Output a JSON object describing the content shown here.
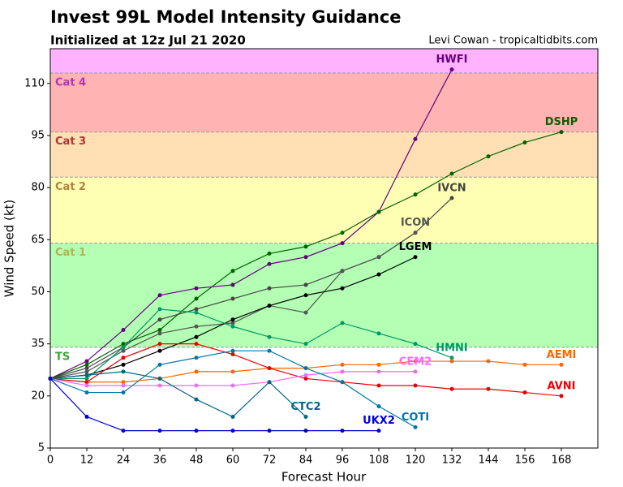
{
  "chart_data": {
    "type": "line",
    "title": "Invest 99L Model Intensity Guidance",
    "subtitle": "Initialized at 12z Jul 21 2020",
    "credit": "Levi Cowan - tropicaltidbits.com",
    "x_label": "Forecast Hour",
    "y_label": "Wind Speed (kt)",
    "xlim": [
      0,
      180
    ],
    "ylim": [
      5,
      120
    ],
    "xticks": [
      0,
      12,
      24,
      36,
      48,
      60,
      72,
      84,
      96,
      108,
      120,
      132,
      144,
      156,
      168
    ],
    "yticks": [
      5,
      20,
      35,
      50,
      65,
      80,
      95,
      110
    ],
    "bands": [
      {
        "name": "TS",
        "lower": 34,
        "color": "#b3ffb3",
        "label_color": "#33aa33"
      },
      {
        "name": "Cat 1",
        "lower": 64,
        "color": "#ffffb3",
        "label_color": "#b3b34d"
      },
      {
        "name": "Cat 2",
        "lower": 83,
        "color": "#ffdfb3",
        "label_color": "#b38040"
      },
      {
        "name": "Cat 3",
        "lower": 96,
        "color": "#ffb3b3",
        "label_color": "#b33333"
      },
      {
        "name": "Cat 4",
        "lower": 113,
        "color": "#ffb3ff",
        "label_color": "#b333b3"
      }
    ],
    "series": [
      {
        "name": "HWFI",
        "color": "#660080",
        "x": [
          0,
          12,
          24,
          36,
          48,
          60,
          72,
          84,
          96,
          108,
          120,
          132
        ],
        "values": [
          25,
          30,
          39,
          49,
          51,
          52,
          58,
          60,
          64,
          73,
          94,
          114
        ]
      },
      {
        "name": "DSHP",
        "color": "#006400",
        "x": [
          0,
          12,
          24,
          36,
          48,
          60,
          72,
          84,
          96,
          108,
          120,
          132,
          144,
          156,
          168
        ],
        "values": [
          25,
          29,
          35,
          39,
          48,
          56,
          61,
          63,
          67,
          73,
          78,
          84,
          89,
          93,
          96
        ]
      },
      {
        "name": "IVCN",
        "color": "#444444",
        "x": [
          0,
          12,
          24,
          36,
          48,
          60,
          72,
          84,
          96,
          108,
          120,
          132
        ],
        "values": [
          25,
          28,
          34,
          42,
          45,
          48,
          51,
          52,
          56,
          60,
          67,
          77
        ]
      },
      {
        "name": "ICON",
        "color": "#555555",
        "x": [
          0,
          12,
          24,
          36,
          48,
          60,
          72,
          84,
          96,
          108,
          120
        ],
        "values": [
          25,
          27,
          33,
          38,
          40,
          41,
          46,
          44,
          56,
          60,
          67
        ]
      },
      {
        "name": "LGEM",
        "color": "#000000",
        "x": [
          0,
          12,
          24,
          36,
          48,
          60,
          72,
          84,
          96,
          108,
          120
        ],
        "values": [
          25,
          26,
          29,
          33,
          37,
          42,
          46,
          49,
          51,
          55,
          60
        ]
      },
      {
        "name": "HMNI",
        "color": "#009966",
        "x": [
          0,
          12,
          24,
          36,
          48,
          60,
          72,
          84,
          96,
          108,
          120,
          132
        ],
        "values": [
          25,
          25,
          34,
          45,
          44,
          40,
          37,
          35,
          41,
          38,
          35,
          31
        ]
      },
      {
        "name": "AEMI",
        "color": "#ff6600",
        "x": [
          0,
          12,
          24,
          36,
          48,
          60,
          72,
          84,
          96,
          108,
          120,
          132,
          144,
          156,
          168
        ],
        "values": [
          25,
          24,
          24,
          25,
          27,
          27,
          28,
          28,
          29,
          29,
          30,
          30,
          30,
          29,
          29
        ]
      },
      {
        "name": "AVNI",
        "color": "#ee0000",
        "x": [
          0,
          12,
          24,
          36,
          48,
          60,
          72,
          84,
          96,
          108,
          120,
          132,
          144,
          156,
          168
        ],
        "values": [
          25,
          24,
          31,
          35,
          35,
          32,
          28,
          25,
          24,
          23,
          23,
          22,
          22,
          21,
          20
        ]
      },
      {
        "name": "CEM2",
        "color": "#ff66ff",
        "x": [
          0,
          12,
          24,
          36,
          48,
          60,
          72,
          84,
          96,
          108,
          120
        ],
        "values": [
          25,
          23,
          23,
          23,
          23,
          23,
          24,
          26,
          27,
          27,
          27
        ]
      },
      {
        "name": "CTC2",
        "color": "#006688",
        "x": [
          0,
          12,
          24,
          36,
          48,
          60,
          72,
          84
        ],
        "values": [
          25,
          26,
          27,
          25,
          19,
          14,
          24,
          14
        ]
      },
      {
        "name": "COTI",
        "color": "#0077aa",
        "x": [
          0,
          12,
          24,
          36,
          48,
          60,
          72,
          84,
          96,
          108,
          120
        ],
        "values": [
          25,
          21,
          21,
          29,
          31,
          33,
          33,
          28,
          24,
          17,
          11
        ]
      },
      {
        "name": "UKX2",
        "color": "#0000dd",
        "x": [
          0,
          12,
          24,
          36,
          48,
          60,
          72,
          84,
          96,
          108
        ],
        "values": [
          25,
          14,
          10,
          10,
          10,
          10,
          10,
          10,
          10,
          10
        ]
      }
    ]
  }
}
